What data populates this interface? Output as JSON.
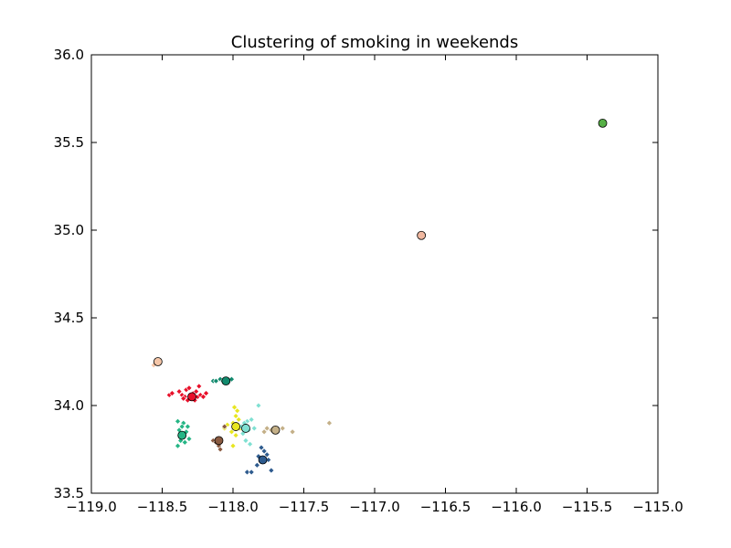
{
  "chart_data": {
    "type": "scatter",
    "title": "Clustering of smoking in weekends",
    "xlabel": "",
    "ylabel": "",
    "xlim": [
      -119.0,
      -115.0
    ],
    "ylim": [
      33.5,
      36.0
    ],
    "xticks": [
      -119.0,
      -118.5,
      -118.0,
      -117.5,
      -117.0,
      -116.5,
      -116.0,
      -115.5,
      -115.0
    ],
    "yticks": [
      33.5,
      34.0,
      34.5,
      35.0,
      35.5,
      36.0
    ],
    "xtick_labels": [
      "−119.0",
      "−118.5",
      "−118.0",
      "−117.5",
      "−117.0",
      "−116.5",
      "−116.0",
      "−115.5",
      "−115.0"
    ],
    "ytick_labels": [
      "33.5",
      "34.0",
      "34.5",
      "35.0",
      "35.5",
      "36.0"
    ],
    "grid": false,
    "legend": "none",
    "clusters": [
      {
        "color": "#e8102a",
        "center": [
          -118.29,
          34.05
        ],
        "points": [
          [
            -118.45,
            34.06
          ],
          [
            -118.43,
            34.07
          ],
          [
            -118.38,
            34.08
          ],
          [
            -118.36,
            34.06
          ],
          [
            -118.34,
            34.05
          ],
          [
            -118.33,
            34.09
          ],
          [
            -118.31,
            34.1
          ],
          [
            -118.3,
            34.04
          ],
          [
            -118.28,
            34.07
          ],
          [
            -118.27,
            34.03
          ],
          [
            -118.25,
            34.05
          ],
          [
            -118.24,
            34.11
          ],
          [
            -118.23,
            34.06
          ],
          [
            -118.21,
            34.05
          ],
          [
            -118.19,
            34.07
          ],
          [
            -118.32,
            34.03
          ],
          [
            -118.26,
            34.08
          ],
          [
            -118.35,
            34.04
          ]
        ]
      },
      {
        "color": "#128a6e",
        "center": [
          -118.05,
          34.14
        ],
        "points": [
          [
            -118.14,
            34.14
          ],
          [
            -118.12,
            34.14
          ],
          [
            -118.09,
            34.15
          ],
          [
            -118.07,
            34.14
          ],
          [
            -118.03,
            34.14
          ],
          [
            -118.01,
            34.15
          ]
        ]
      },
      {
        "color": "#25b585",
        "center": [
          -118.36,
          33.83
        ],
        "points": [
          [
            -118.39,
            33.91
          ],
          [
            -118.35,
            33.9
          ],
          [
            -118.32,
            33.88
          ],
          [
            -118.38,
            33.86
          ],
          [
            -118.33,
            33.85
          ],
          [
            -118.37,
            33.8
          ],
          [
            -118.34,
            33.79
          ],
          [
            -118.39,
            33.77
          ],
          [
            -118.31,
            33.81
          ],
          [
            -118.36,
            33.88
          ]
        ]
      },
      {
        "color": "#e8e620",
        "center": [
          -117.98,
          33.88
        ],
        "points": [
          [
            -117.99,
            33.99
          ],
          [
            -117.97,
            33.97
          ],
          [
            -117.98,
            33.94
          ],
          [
            -117.96,
            33.92
          ],
          [
            -118.0,
            33.9
          ],
          [
            -118.04,
            33.89
          ],
          [
            -118.06,
            33.87
          ],
          [
            -117.95,
            33.87
          ],
          [
            -118.01,
            33.85
          ],
          [
            -117.98,
            33.83
          ],
          [
            -118.0,
            33.77
          ]
        ]
      },
      {
        "color": "#7fe0d2",
        "center": [
          -117.91,
          33.87
        ],
        "points": [
          [
            -117.82,
            34.0
          ],
          [
            -117.87,
            33.92
          ],
          [
            -117.9,
            33.91
          ],
          [
            -117.92,
            33.9
          ],
          [
            -117.94,
            33.88
          ],
          [
            -117.89,
            33.86
          ],
          [
            -117.93,
            33.84
          ],
          [
            -117.91,
            33.8
          ],
          [
            -117.88,
            33.78
          ],
          [
            -117.85,
            33.87
          ]
        ]
      },
      {
        "color": "#c4b088",
        "center": [
          -117.7,
          33.86
        ],
        "points": [
          [
            -117.32,
            33.9
          ],
          [
            -117.58,
            33.85
          ],
          [
            -117.65,
            33.87
          ],
          [
            -117.73,
            33.86
          ],
          [
            -117.78,
            33.85
          ],
          [
            -117.76,
            33.87
          ]
        ]
      },
      {
        "color": "#8a5a40",
        "center": [
          -118.1,
          33.8
        ],
        "points": [
          [
            -118.14,
            33.8
          ],
          [
            -118.12,
            33.79
          ],
          [
            -118.1,
            33.77
          ],
          [
            -118.09,
            33.75
          ],
          [
            -118.06,
            33.88
          ]
        ]
      },
      {
        "color": "#2e5b8e",
        "center": [
          -117.79,
          33.69
        ],
        "points": [
          [
            -117.8,
            33.76
          ],
          [
            -117.78,
            33.74
          ],
          [
            -117.76,
            33.72
          ],
          [
            -117.82,
            33.71
          ],
          [
            -117.75,
            33.69
          ],
          [
            -117.83,
            33.66
          ],
          [
            -117.73,
            33.63
          ],
          [
            -117.9,
            33.62
          ],
          [
            -117.87,
            33.62
          ]
        ]
      },
      {
        "color": "#f5c6a8",
        "center": [
          -118.53,
          34.25
        ],
        "points": [
          [
            -118.56,
            34.23
          ]
        ]
      },
      {
        "color": "#f0b8a0",
        "center": [
          -116.67,
          34.97
        ],
        "points": []
      },
      {
        "color": "#56b046",
        "center": [
          -115.39,
          35.61
        ],
        "points": []
      }
    ]
  }
}
